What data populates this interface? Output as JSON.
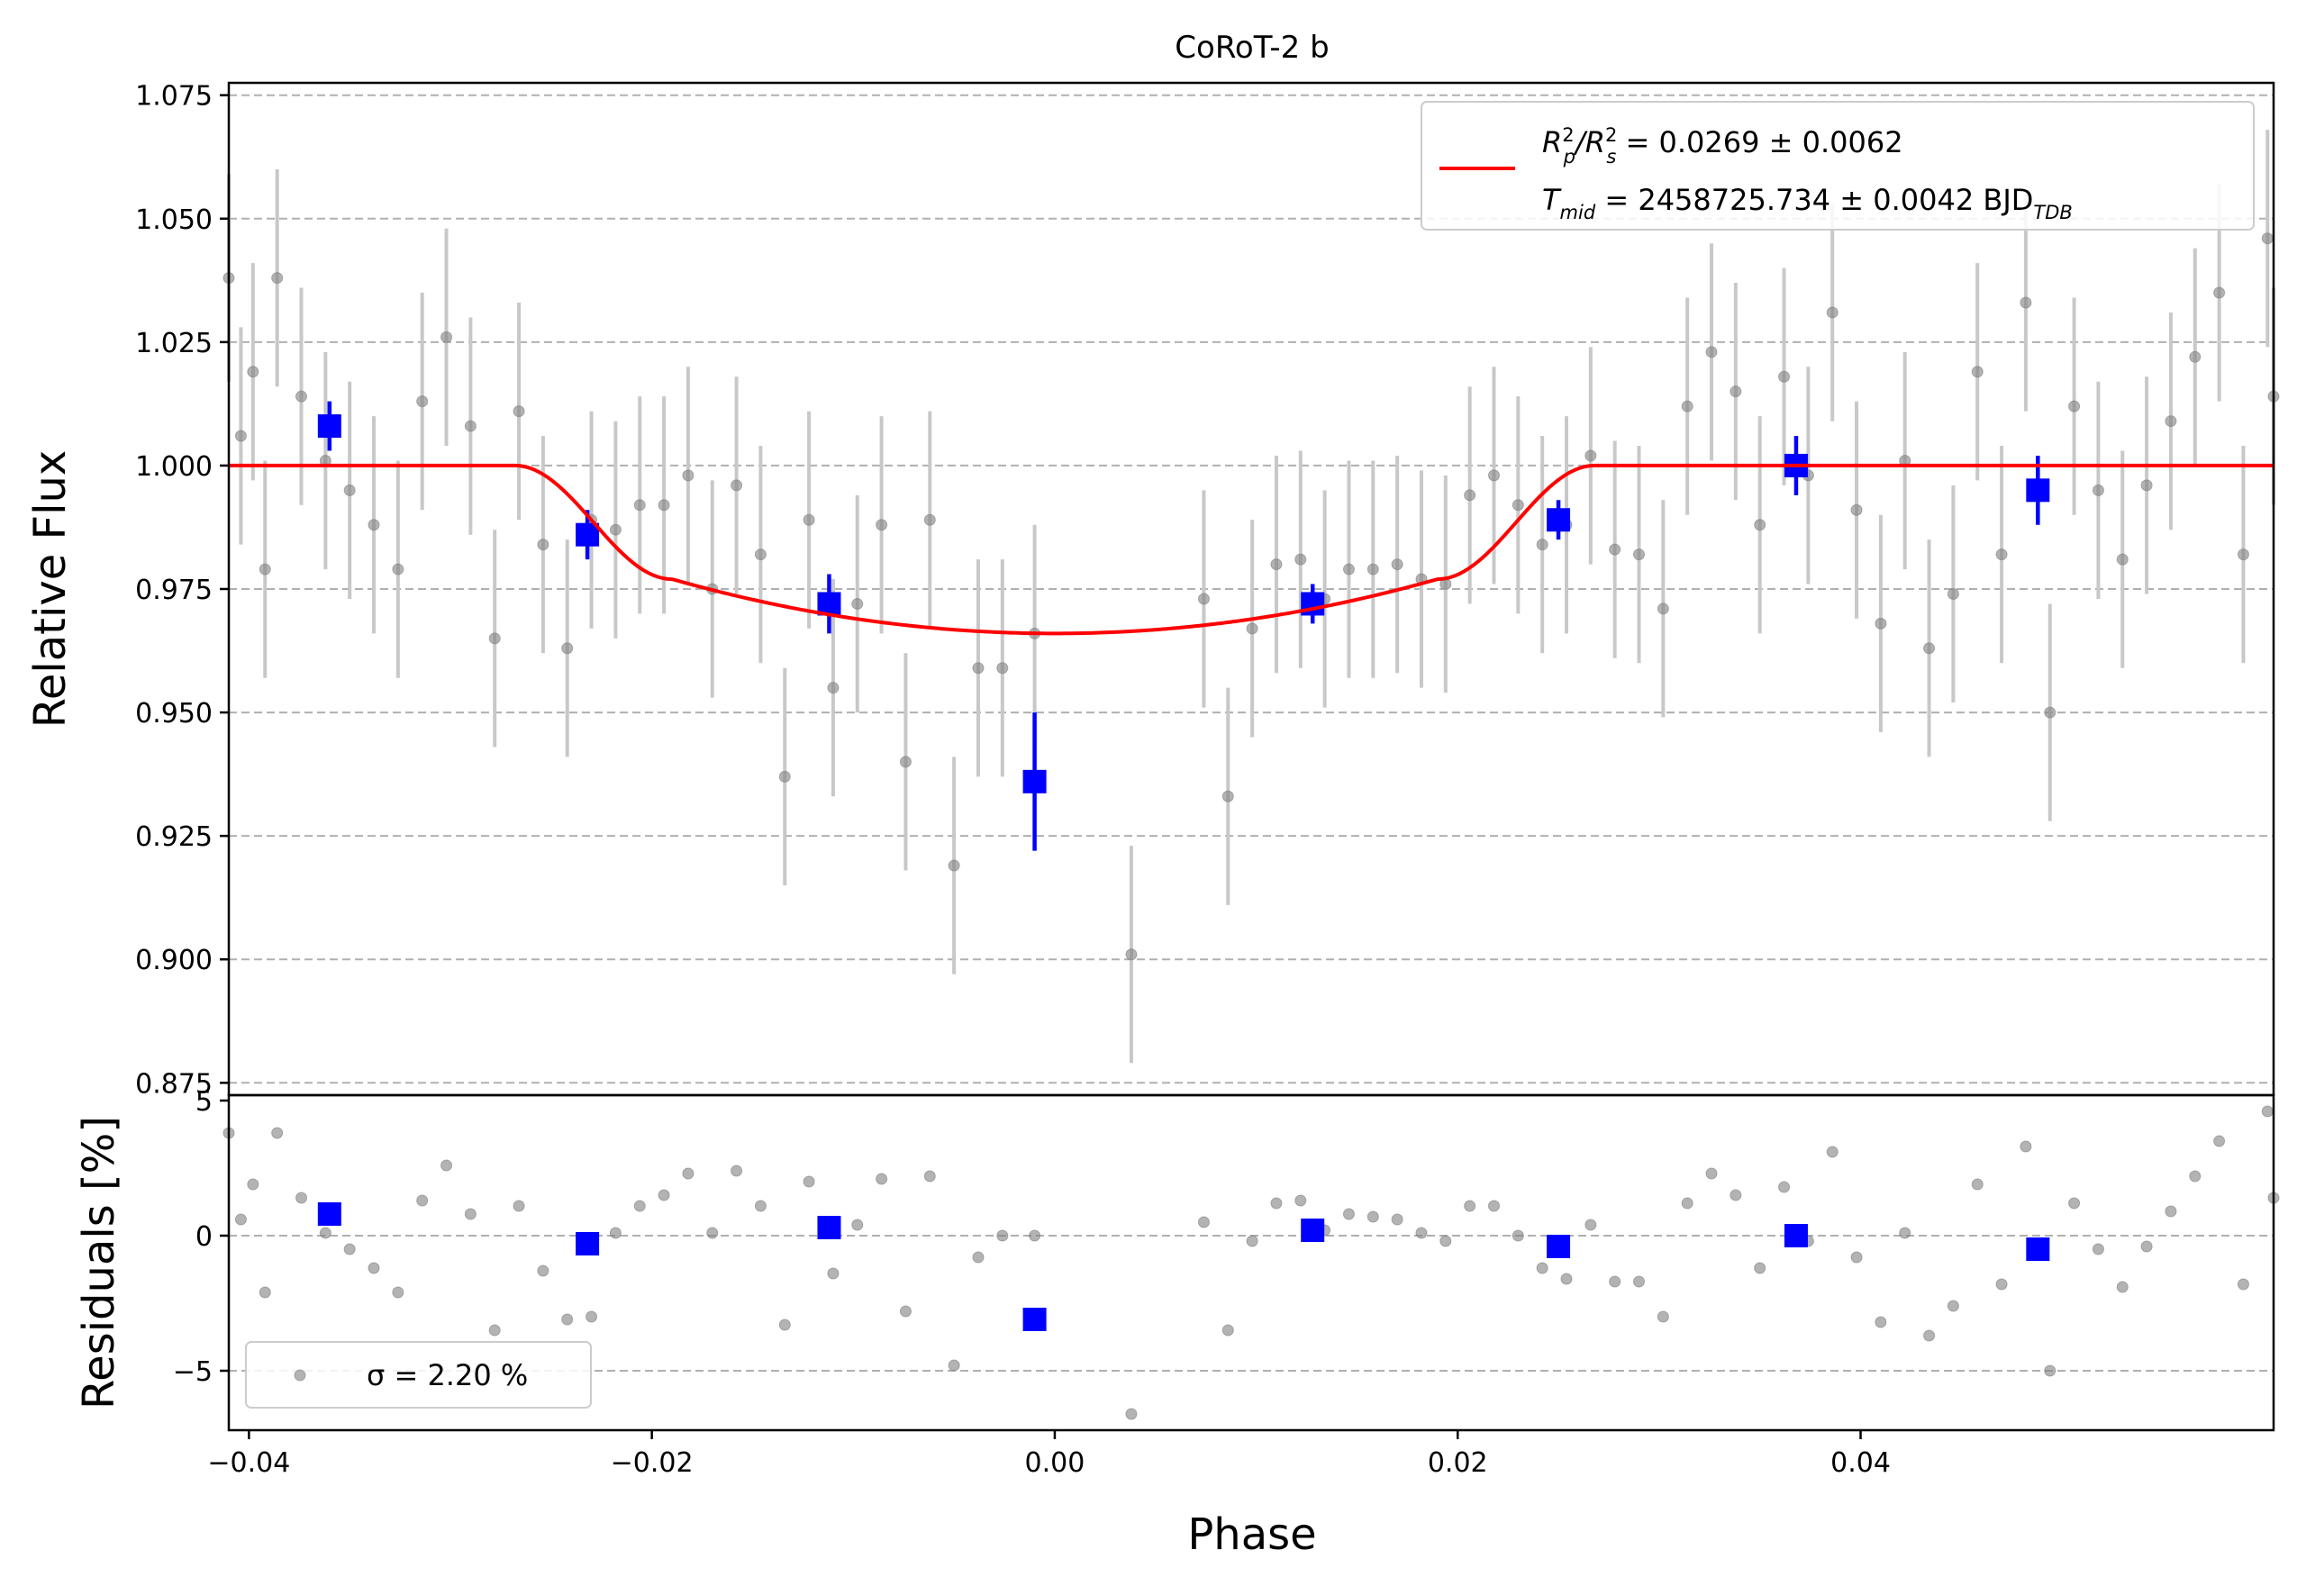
{
  "chart_data": [
    {
      "type": "scatter",
      "panel": "main",
      "title": "CoRoT-2 b",
      "xlabel": "",
      "ylabel": "Relative Flux",
      "xlim": [
        -0.041,
        0.0605
      ],
      "ylim": [
        0.8725,
        1.0775
      ],
      "yticks": [
        0.875,
        0.9,
        0.925,
        0.95,
        0.975,
        1.0,
        1.025,
        1.05,
        1.075
      ],
      "ytick_labels": [
        "0.875",
        "0.900",
        "0.925",
        "0.950",
        "0.975",
        "1.000",
        "1.025",
        "1.050",
        "1.075"
      ],
      "grid": "horizontal dashed",
      "legend": {
        "placement": "upper-right",
        "line1_prefix": "R",
        "line1_sub1": "p",
        "line1_sup1": "2",
        "line1_slash": "/R",
        "line1_sub2": "s",
        "line1_sup2": "2",
        "line1_value": " = 0.0269 ± 0.0062",
        "line2_prefix": "T",
        "line2_sub": "mid",
        "line2_value": " = 2458725.734 ± 0.0042 BJD",
        "line2_unit_sub": "TDB"
      },
      "colors": {
        "raw": "#808080",
        "raw_err": "#c8c8c8",
        "binned": "#0000ff",
        "model": "#ff0000"
      },
      "raw_points": [
        [
          -0.0411,
          1.038,
          0.021
        ],
        [
          -0.0404,
          1.006,
          0.022
        ],
        [
          -0.0398,
          1.019,
          0.022
        ],
        [
          -0.0392,
          0.979,
          0.022
        ],
        [
          -0.0386,
          1.038,
          0.022
        ],
        [
          -0.0374,
          1.014,
          0.022
        ],
        [
          -0.0362,
          1.001,
          0.022
        ],
        [
          -0.035,
          0.995,
          0.022
        ],
        [
          -0.0338,
          0.988,
          0.022
        ],
        [
          -0.0326,
          0.979,
          0.022
        ],
        [
          -0.0314,
          1.013,
          0.022
        ],
        [
          -0.0302,
          1.026,
          0.022
        ],
        [
          -0.029,
          1.008,
          0.022
        ],
        [
          -0.0278,
          0.965,
          0.022
        ],
        [
          -0.0266,
          1.011,
          0.022
        ],
        [
          -0.0254,
          0.984,
          0.022
        ],
        [
          -0.0242,
          0.963,
          0.022
        ],
        [
          -0.023,
          0.989,
          0.022
        ],
        [
          -0.0218,
          0.987,
          0.022
        ],
        [
          -0.0206,
          0.992,
          0.022
        ],
        [
          -0.0194,
          0.992,
          0.022
        ],
        [
          -0.0182,
          0.998,
          0.022
        ],
        [
          -0.017,
          0.975,
          0.022
        ],
        [
          -0.0158,
          0.996,
          0.022
        ],
        [
          -0.0146,
          0.982,
          0.022
        ],
        [
          -0.0134,
          0.937,
          0.022
        ],
        [
          -0.0122,
          0.989,
          0.022
        ],
        [
          -0.011,
          0.955,
          0.022
        ],
        [
          -0.0098,
          0.972,
          0.022
        ],
        [
          -0.0086,
          0.988,
          0.022
        ],
        [
          -0.0074,
          0.94,
          0.022
        ],
        [
          -0.0062,
          0.989,
          0.022
        ],
        [
          -0.005,
          0.919,
          0.022
        ],
        [
          -0.0038,
          0.959,
          0.022
        ],
        [
          -0.0026,
          0.959,
          0.022
        ],
        [
          -0.001,
          0.966,
          0.022
        ],
        [
          0.0038,
          0.901,
          0.022
        ],
        [
          0.0074,
          0.973,
          0.022
        ],
        [
          0.0086,
          0.933,
          0.022
        ],
        [
          0.0098,
          0.967,
          0.022
        ],
        [
          0.011,
          0.98,
          0.022
        ],
        [
          0.0122,
          0.981,
          0.022
        ],
        [
          0.0134,
          0.973,
          0.022
        ],
        [
          0.0146,
          0.979,
          0.022
        ],
        [
          0.0158,
          0.979,
          0.022
        ],
        [
          0.017,
          0.98,
          0.022
        ],
        [
          0.0182,
          0.977,
          0.022
        ],
        [
          0.0194,
          0.976,
          0.022
        ],
        [
          0.0206,
          0.994,
          0.022
        ],
        [
          0.0218,
          0.998,
          0.022
        ],
        [
          0.023,
          0.992,
          0.022
        ],
        [
          0.0242,
          0.984,
          0.022
        ],
        [
          0.0254,
          0.988,
          0.022
        ],
        [
          0.0266,
          1.002,
          0.022
        ],
        [
          0.0278,
          0.983,
          0.022
        ],
        [
          0.029,
          0.982,
          0.022
        ],
        [
          0.0302,
          0.971,
          0.022
        ],
        [
          0.0314,
          1.012,
          0.022
        ],
        [
          0.0326,
          1.023,
          0.022
        ],
        [
          0.0338,
          1.015,
          0.022
        ],
        [
          0.035,
          0.988,
          0.022
        ],
        [
          0.0362,
          1.018,
          0.022
        ],
        [
          0.0374,
          0.998,
          0.022
        ],
        [
          0.0386,
          1.031,
          0.022
        ],
        [
          0.0398,
          0.991,
          0.022
        ],
        [
          0.041,
          0.968,
          0.022
        ],
        [
          0.0422,
          1.001,
          0.022
        ],
        [
          0.0434,
          0.963,
          0.022
        ],
        [
          0.0446,
          0.974,
          0.022
        ],
        [
          0.0458,
          1.019,
          0.022
        ],
        [
          0.047,
          0.982,
          0.022
        ],
        [
          0.0482,
          1.033,
          0.022
        ],
        [
          0.0494,
          0.95,
          0.022
        ],
        [
          0.0506,
          1.012,
          0.022
        ],
        [
          0.0518,
          0.995,
          0.022
        ],
        [
          0.053,
          0.981,
          0.022
        ],
        [
          0.0542,
          0.996,
          0.022
        ],
        [
          0.0554,
          1.009,
          0.022
        ],
        [
          0.0566,
          1.022,
          0.022
        ],
        [
          0.0578,
          1.035,
          0.022
        ],
        [
          0.059,
          0.982,
          0.022
        ],
        [
          0.0602,
          1.046,
          0.022
        ],
        [
          0.0608,
          1.014,
          0.022
        ]
      ],
      "binned_points": [
        [
          -0.036,
          1.008,
          0.005
        ],
        [
          -0.0232,
          0.986,
          0.005
        ],
        [
          -0.0112,
          0.972,
          0.006
        ],
        [
          -0.001,
          0.936,
          0.014
        ],
        [
          0.0128,
          0.972,
          0.004
        ],
        [
          0.025,
          0.989,
          0.004
        ],
        [
          0.0368,
          1.0,
          0.006
        ],
        [
          0.0488,
          0.995,
          0.007
        ]
      ],
      "model": {
        "label": "transit model",
        "baseline": 1.0,
        "depth_center": 0.966,
        "t14_half": 0.0268,
        "t23_half": 0.019,
        "ingress_level": 0.977
      }
    },
    {
      "type": "scatter",
      "panel": "residuals",
      "xlabel": "Phase",
      "ylabel": "Residuals [%]",
      "xlim": [
        -0.041,
        0.0605
      ],
      "ylim": [
        -7.2,
        5.2
      ],
      "xticks": [
        -0.04,
        -0.02,
        0.0,
        0.02,
        0.04
      ],
      "xtick_labels": [
        "−0.04",
        "−0.02",
        "0.00",
        "0.02",
        "0.04"
      ],
      "yticks": [
        -5,
        0,
        5
      ],
      "ytick_labels": [
        "−5",
        "0",
        "5"
      ],
      "grid": "horizontal dashed",
      "legend": {
        "placement": "lower-left",
        "text": "σ = 2.20 %"
      },
      "raw_points": [
        [
          -0.0411,
          3.8
        ],
        [
          -0.0404,
          0.6
        ],
        [
          -0.0398,
          1.9
        ],
        [
          -0.0392,
          -2.1
        ],
        [
          -0.0386,
          3.8
        ],
        [
          -0.0374,
          1.4
        ],
        [
          -0.0362,
          0.1
        ],
        [
          -0.035,
          -0.5
        ],
        [
          -0.0338,
          -1.2
        ],
        [
          -0.0326,
          -2.1
        ],
        [
          -0.0314,
          1.3
        ],
        [
          -0.0302,
          2.6
        ],
        [
          -0.029,
          0.8
        ],
        [
          -0.0278,
          -3.5
        ],
        [
          -0.0266,
          1.1
        ],
        [
          -0.0254,
          -1.3
        ],
        [
          -0.0242,
          -3.1
        ],
        [
          -0.023,
          -3.0
        ],
        [
          -0.0218,
          0.1
        ],
        [
          -0.0206,
          1.1
        ],
        [
          -0.0194,
          1.5
        ],
        [
          -0.0182,
          2.3
        ],
        [
          -0.017,
          0.1
        ],
        [
          -0.0158,
          2.4
        ],
        [
          -0.0146,
          1.1
        ],
        [
          -0.0134,
          -3.3
        ],
        [
          -0.0122,
          2.0
        ],
        [
          -0.011,
          -1.4
        ],
        [
          -0.0098,
          0.4
        ],
        [
          -0.0086,
          2.1
        ],
        [
          -0.0074,
          -2.8
        ],
        [
          -0.0062,
          2.2
        ],
        [
          -0.005,
          -4.8
        ],
        [
          -0.0038,
          -0.8
        ],
        [
          -0.0026,
          0.0
        ],
        [
          -0.001,
          0.0
        ],
        [
          0.0038,
          -6.6
        ],
        [
          0.0074,
          0.5
        ],
        [
          0.0086,
          -3.5
        ],
        [
          0.0098,
          -0.2
        ],
        [
          0.011,
          1.2
        ],
        [
          0.0122,
          1.3
        ],
        [
          0.0134,
          0.2
        ],
        [
          0.0146,
          0.8
        ],
        [
          0.0158,
          0.7
        ],
        [
          0.017,
          0.6
        ],
        [
          0.0182,
          0.1
        ],
        [
          0.0194,
          -0.2
        ],
        [
          0.0206,
          1.1
        ],
        [
          0.0218,
          1.1
        ],
        [
          0.023,
          0.0
        ],
        [
          0.0242,
          -1.2
        ],
        [
          0.0254,
          -1.6
        ],
        [
          0.0266,
          0.4
        ],
        [
          0.0278,
          -1.7
        ],
        [
          0.029,
          -1.7
        ],
        [
          0.0302,
          -3.0
        ],
        [
          0.0314,
          1.2
        ],
        [
          0.0326,
          2.3
        ],
        [
          0.0338,
          1.5
        ],
        [
          0.035,
          -1.2
        ],
        [
          0.0362,
          1.8
        ],
        [
          0.0374,
          -0.2
        ],
        [
          0.0386,
          3.1
        ],
        [
          0.0398,
          -0.8
        ],
        [
          0.041,
          -3.2
        ],
        [
          0.0422,
          0.1
        ],
        [
          0.0434,
          -3.7
        ],
        [
          0.0446,
          -2.6
        ],
        [
          0.0458,
          1.9
        ],
        [
          0.047,
          -1.8
        ],
        [
          0.0482,
          3.3
        ],
        [
          0.0494,
          -5.0
        ],
        [
          0.0506,
          1.2
        ],
        [
          0.0518,
          -0.5
        ],
        [
          0.053,
          -1.9
        ],
        [
          0.0542,
          -0.4
        ],
        [
          0.0554,
          0.9
        ],
        [
          0.0566,
          2.2
        ],
        [
          0.0578,
          3.5
        ],
        [
          0.059,
          -1.8
        ],
        [
          0.0602,
          4.6
        ],
        [
          0.0608,
          1.4
        ]
      ],
      "binned_points": [
        [
          -0.036,
          0.8
        ],
        [
          -0.0232,
          -0.3
        ],
        [
          -0.0112,
          0.3
        ],
        [
          -0.001,
          -3.1
        ],
        [
          0.0128,
          0.2
        ],
        [
          0.025,
          -0.4
        ],
        [
          0.0368,
          0.0
        ],
        [
          0.0488,
          -0.5
        ]
      ]
    }
  ]
}
